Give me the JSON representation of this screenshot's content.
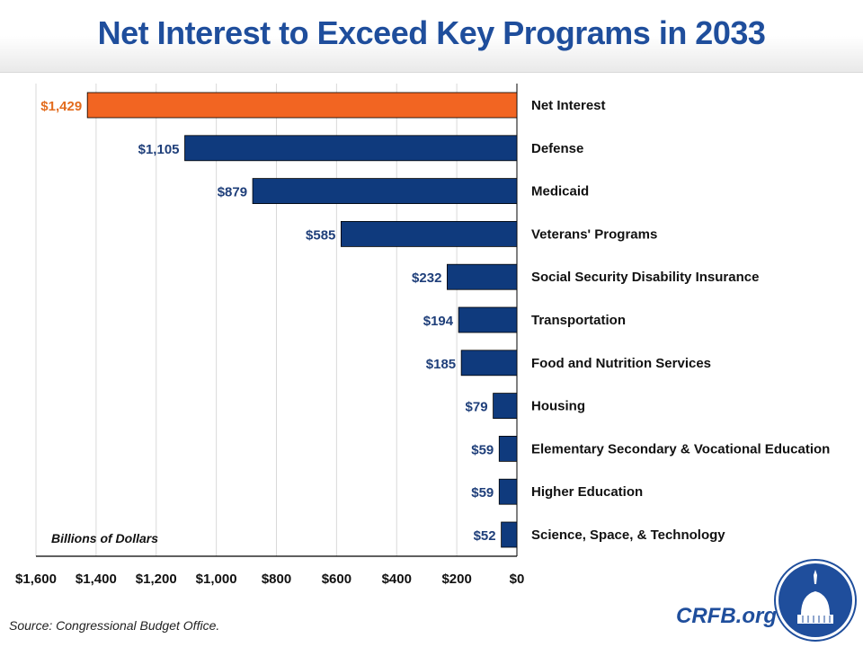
{
  "title": "Net Interest to Exceed Key Programs in 2033",
  "source": "Source: Congressional Budget Office.",
  "brand": "CRFB.org",
  "colors": {
    "highlight": "#f26522",
    "bar": "#0f3a7d",
    "title": "#1f4e9c"
  },
  "chart_data": {
    "type": "bar",
    "orientation": "horizontal",
    "title": "Net Interest to Exceed Key Programs in 2033",
    "annotation": "Billions of Dollars",
    "categories": [
      "Net Interest",
      "Defense",
      "Medicaid",
      "Veterans' Programs",
      "Social Security Disability Insurance",
      "Transportation",
      "Food and Nutrition Services",
      "Housing",
      "Elementary Secondary & Vocational Education",
      "Higher Education",
      "Science, Space, & Technology"
    ],
    "values": [
      1429,
      1105,
      879,
      585,
      232,
      194,
      185,
      79,
      59,
      59,
      52
    ],
    "data_labels": [
      "$1,429",
      "$1,105",
      "$879",
      "$585",
      "$232",
      "$194",
      "$185",
      "$79",
      "$59",
      "$59",
      "$52"
    ],
    "xlim": [
      0,
      1600
    ],
    "x_reversed": true,
    "x_ticks": [
      1600,
      1400,
      1200,
      1000,
      800,
      600,
      400,
      200,
      0
    ],
    "x_tick_labels": [
      "$1,600",
      "$1,400",
      "$1,200",
      "$1,000",
      "$800",
      "$600",
      "$400",
      "$200",
      "$0"
    ],
    "grid": true,
    "highlighted_category": "Net Interest"
  }
}
